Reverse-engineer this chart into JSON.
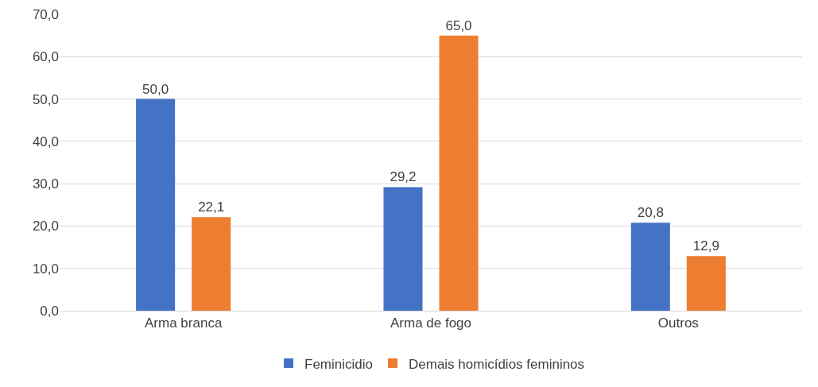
{
  "chart_data": {
    "type": "bar",
    "categories": [
      "Arma branca",
      "Arma de fogo",
      "Outros"
    ],
    "series": [
      {
        "name": "Feminicidio",
        "color": "#4472c4",
        "values": [
          50.0,
          29.2,
          20.8
        ],
        "value_labels": [
          "50,0",
          "29,2",
          "20,8"
        ]
      },
      {
        "name": "Demais homicídios femininos",
        "color": "#ed7d31",
        "values": [
          22.1,
          65.0,
          12.9
        ],
        "value_labels": [
          "22,1",
          "65,0",
          "12,9"
        ]
      }
    ],
    "ylim": [
      0,
      70
    ],
    "yticks": [
      {
        "value": 0,
        "label": "0,0"
      },
      {
        "value": 10,
        "label": "10,0"
      },
      {
        "value": 20,
        "label": "20,0"
      },
      {
        "value": 30,
        "label": "30,0"
      },
      {
        "value": 40,
        "label": "40,0"
      },
      {
        "value": 50,
        "label": "50,0"
      },
      {
        "value": 60,
        "label": "60,0"
      },
      {
        "value": 70,
        "label": "70,0"
      }
    ],
    "grid": "y",
    "legend": "bottom"
  }
}
